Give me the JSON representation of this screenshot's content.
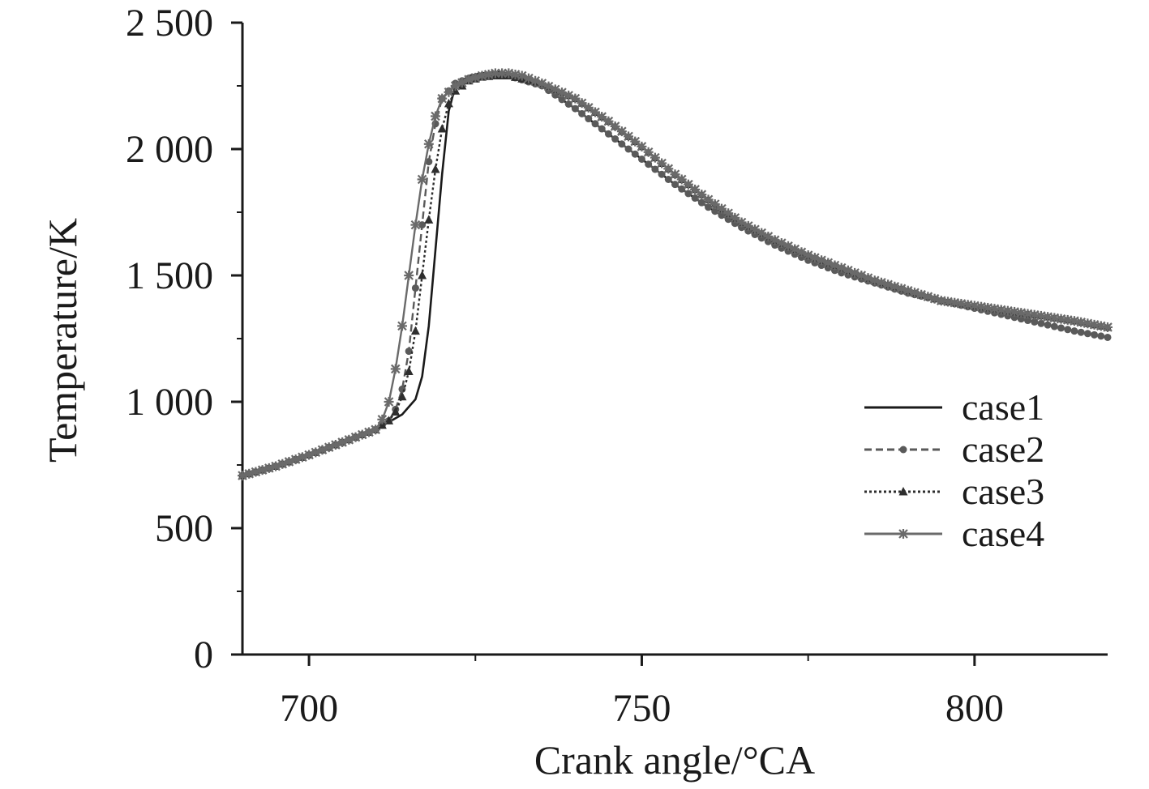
{
  "chart_data": {
    "type": "line",
    "title": "",
    "xlabel": "Crank angle/°CA",
    "ylabel": "Temperature/K",
    "xlim": [
      690,
      820
    ],
    "ylim": [
      0,
      2500
    ],
    "x_ticks": [
      700,
      750,
      800
    ],
    "x_tick_labels": [
      "700",
      "750",
      "800"
    ],
    "x_minor_ticks": [
      725,
      775
    ],
    "y_ticks": [
      0,
      500,
      1000,
      1500,
      2000,
      2500
    ],
    "y_tick_labels": [
      "0",
      "500",
      "1 000",
      "1 500",
      "2 000",
      "2 500"
    ],
    "y_minor_ticks": [
      250,
      750,
      1250,
      1750,
      2250
    ],
    "grid": false,
    "legend_position": "right-center",
    "series": [
      {
        "name": "case1",
        "color": "#1a1a1a",
        "dash": "solid",
        "marker": "none",
        "points": [
          [
            690,
            708
          ],
          [
            695,
            745
          ],
          [
            700,
            790
          ],
          [
            705,
            840
          ],
          [
            710,
            890
          ],
          [
            712,
            920
          ],
          [
            714,
            950
          ],
          [
            716,
            1010
          ],
          [
            717,
            1100
          ],
          [
            718,
            1300
          ],
          [
            719,
            1600
          ],
          [
            720,
            1900
          ],
          [
            721,
            2150
          ],
          [
            722,
            2250
          ],
          [
            724,
            2290
          ],
          [
            726,
            2300
          ],
          [
            728,
            2305
          ],
          [
            730,
            2300
          ],
          [
            735,
            2250
          ],
          [
            740,
            2160
          ],
          [
            745,
            2060
          ],
          [
            750,
            1960
          ],
          [
            755,
            1860
          ],
          [
            760,
            1770
          ],
          [
            765,
            1690
          ],
          [
            770,
            1620
          ],
          [
            775,
            1560
          ],
          [
            780,
            1510
          ],
          [
            785,
            1470
          ],
          [
            790,
            1430
          ],
          [
            795,
            1400
          ],
          [
            800,
            1370
          ],
          [
            805,
            1340
          ],
          [
            810,
            1310
          ],
          [
            815,
            1280
          ],
          [
            820,
            1255
          ]
        ]
      },
      {
        "name": "case2",
        "color": "#5a5a5a",
        "dash": "dashed",
        "marker": "circle",
        "points": [
          [
            690,
            708
          ],
          [
            695,
            745
          ],
          [
            700,
            790
          ],
          [
            705,
            840
          ],
          [
            710,
            890
          ],
          [
            712,
            925
          ],
          [
            713,
            970
          ],
          [
            714,
            1050
          ],
          [
            715,
            1200
          ],
          [
            716,
            1450
          ],
          [
            717,
            1700
          ],
          [
            718,
            1950
          ],
          [
            719,
            2100
          ],
          [
            720,
            2200
          ],
          [
            722,
            2260
          ],
          [
            724,
            2280
          ],
          [
            726,
            2290
          ],
          [
            728,
            2295
          ],
          [
            730,
            2290
          ],
          [
            735,
            2250
          ],
          [
            740,
            2160
          ],
          [
            745,
            2060
          ],
          [
            750,
            1960
          ],
          [
            755,
            1860
          ],
          [
            760,
            1770
          ],
          [
            765,
            1690
          ],
          [
            770,
            1620
          ],
          [
            775,
            1560
          ],
          [
            780,
            1510
          ],
          [
            785,
            1470
          ],
          [
            790,
            1430
          ],
          [
            795,
            1400
          ],
          [
            800,
            1370
          ],
          [
            805,
            1340
          ],
          [
            810,
            1310
          ],
          [
            815,
            1280
          ],
          [
            820,
            1255
          ]
        ]
      },
      {
        "name": "case3",
        "color": "#2e2e2e",
        "dash": "dotted",
        "marker": "triangle",
        "points": [
          [
            690,
            708
          ],
          [
            695,
            745
          ],
          [
            700,
            790
          ],
          [
            705,
            840
          ],
          [
            710,
            890
          ],
          [
            712,
            925
          ],
          [
            713,
            960
          ],
          [
            714,
            1020
          ],
          [
            715,
            1120
          ],
          [
            716,
            1280
          ],
          [
            717,
            1500
          ],
          [
            718,
            1720
          ],
          [
            719,
            1920
          ],
          [
            720,
            2080
          ],
          [
            721,
            2180
          ],
          [
            722,
            2230
          ],
          [
            724,
            2270
          ],
          [
            726,
            2285
          ],
          [
            728,
            2290
          ],
          [
            730,
            2290
          ],
          [
            735,
            2260
          ],
          [
            740,
            2200
          ],
          [
            745,
            2110
          ],
          [
            750,
            2010
          ],
          [
            755,
            1900
          ],
          [
            760,
            1800
          ],
          [
            765,
            1710
          ],
          [
            770,
            1640
          ],
          [
            775,
            1580
          ],
          [
            780,
            1530
          ],
          [
            785,
            1480
          ],
          [
            790,
            1440
          ],
          [
            795,
            1400
          ],
          [
            800,
            1380
          ],
          [
            805,
            1360
          ],
          [
            810,
            1340
          ],
          [
            815,
            1320
          ],
          [
            820,
            1295
          ]
        ]
      },
      {
        "name": "case4",
        "color": "#6a6a6a",
        "dash": "solid",
        "marker": "star",
        "points": [
          [
            690,
            708
          ],
          [
            695,
            745
          ],
          [
            700,
            790
          ],
          [
            705,
            840
          ],
          [
            710,
            890
          ],
          [
            711,
            930
          ],
          [
            712,
            1000
          ],
          [
            713,
            1130
          ],
          [
            714,
            1300
          ],
          [
            715,
            1500
          ],
          [
            716,
            1700
          ],
          [
            717,
            1880
          ],
          [
            718,
            2020
          ],
          [
            719,
            2130
          ],
          [
            720,
            2200
          ],
          [
            722,
            2250
          ],
          [
            724,
            2275
          ],
          [
            726,
            2290
          ],
          [
            728,
            2300
          ],
          [
            730,
            2300
          ],
          [
            732,
            2290
          ],
          [
            735,
            2260
          ],
          [
            740,
            2200
          ],
          [
            745,
            2110
          ],
          [
            750,
            2010
          ],
          [
            755,
            1900
          ],
          [
            760,
            1800
          ],
          [
            765,
            1710
          ],
          [
            770,
            1640
          ],
          [
            775,
            1580
          ],
          [
            780,
            1530
          ],
          [
            785,
            1480
          ],
          [
            790,
            1440
          ],
          [
            795,
            1400
          ],
          [
            800,
            1380
          ],
          [
            805,
            1360
          ],
          [
            810,
            1340
          ],
          [
            815,
            1320
          ],
          [
            820,
            1295
          ]
        ]
      }
    ]
  }
}
